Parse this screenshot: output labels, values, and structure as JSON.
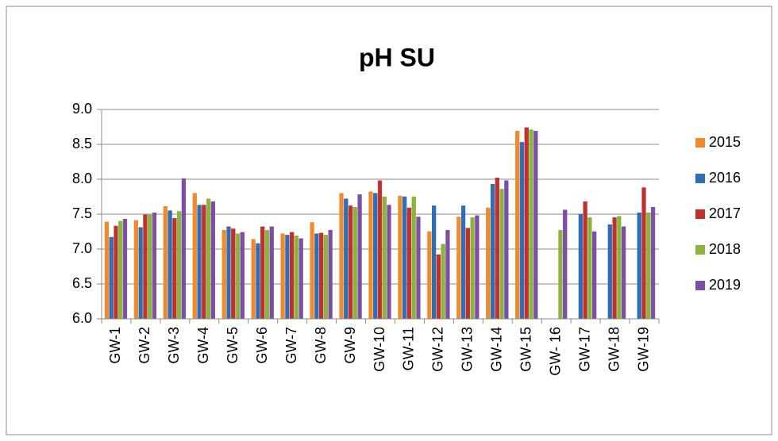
{
  "chart_data": {
    "type": "bar",
    "title": "pH SU",
    "categories": [
      "GW-1",
      "GW-2",
      "GW-3",
      "GW-4",
      "GW-5",
      "GW-6",
      "GW-7",
      "GW-8",
      "GW-9",
      "GW-10",
      "GW-11",
      "GW-12",
      "GW-13",
      "GW-14",
      "GW-15",
      "GW- 16",
      "GW-17",
      "GW-18",
      "GW-19"
    ],
    "series": [
      {
        "name": "2015",
        "color": "#f08a2c",
        "values": [
          7.39,
          7.41,
          7.61,
          7.8,
          7.27,
          7.14,
          7.22,
          7.38,
          7.8,
          7.82,
          7.76,
          7.25,
          7.46,
          7.59,
          8.69,
          null,
          null,
          null,
          null
        ]
      },
      {
        "name": "2016",
        "color": "#2f6db5",
        "values": [
          7.17,
          7.31,
          7.55,
          7.63,
          7.32,
          7.08,
          7.2,
          7.22,
          7.72,
          7.8,
          7.75,
          7.62,
          7.62,
          7.93,
          8.53,
          null,
          7.5,
          7.35,
          7.52
        ]
      },
      {
        "name": "2017",
        "color": "#c0302f",
        "values": [
          7.33,
          7.49,
          7.44,
          7.63,
          7.29,
          7.32,
          7.24,
          7.23,
          7.62,
          7.98,
          7.59,
          6.92,
          7.3,
          8.02,
          8.74,
          null,
          7.68,
          7.45,
          7.88
        ]
      },
      {
        "name": "2018",
        "color": "#8cb43c",
        "values": [
          7.4,
          7.49,
          7.54,
          7.72,
          7.22,
          7.27,
          7.19,
          7.2,
          7.6,
          7.75,
          7.75,
          7.07,
          7.45,
          7.86,
          8.71,
          7.27,
          7.45,
          7.47,
          7.52
        ]
      },
      {
        "name": "2019",
        "color": "#7b4fa6",
        "values": [
          7.43,
          7.52,
          8.01,
          7.68,
          7.24,
          7.32,
          7.15,
          7.27,
          7.78,
          7.63,
          7.46,
          7.27,
          7.48,
          7.98,
          8.69,
          7.56,
          7.25,
          7.32,
          7.6
        ]
      }
    ],
    "ylim": [
      6,
      9
    ],
    "yticks": [
      {
        "value": 6,
        "label": "6.0"
      },
      {
        "value": 6.5,
        "label": "6.5"
      },
      {
        "value": 7,
        "label": "7.0"
      },
      {
        "value": 7.5,
        "label": "7.5"
      },
      {
        "value": 8,
        "label": "8.0"
      },
      {
        "value": 8.5,
        "label": "8.5"
      },
      {
        "value": 9,
        "label": "9.0"
      }
    ],
    "grid": true,
    "legend": "right"
  }
}
